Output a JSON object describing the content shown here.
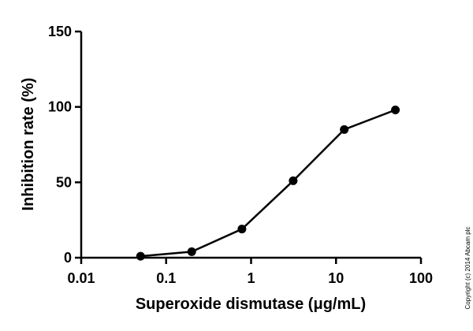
{
  "chart_data": {
    "type": "line",
    "x_scale": "log",
    "x_label": "Superoxide dismutase (μg/mL)",
    "y_label": "Inhibition rate (%)",
    "annotation": "Copyright (c) 2014 Abcam plc",
    "x": [
      0.05,
      0.2,
      0.78,
      3.13,
      12.5,
      50
    ],
    "series": [
      {
        "color": "#000000",
        "values": [
          1,
          4,
          19,
          51,
          85,
          98
        ]
      }
    ],
    "xlim": [
      0.01,
      100
    ],
    "xticks": [
      0.01,
      0.1,
      1,
      10,
      100
    ],
    "ylim": [
      0,
      150
    ],
    "yticks": [
      0,
      50,
      100,
      150
    ],
    "grid": false
  }
}
